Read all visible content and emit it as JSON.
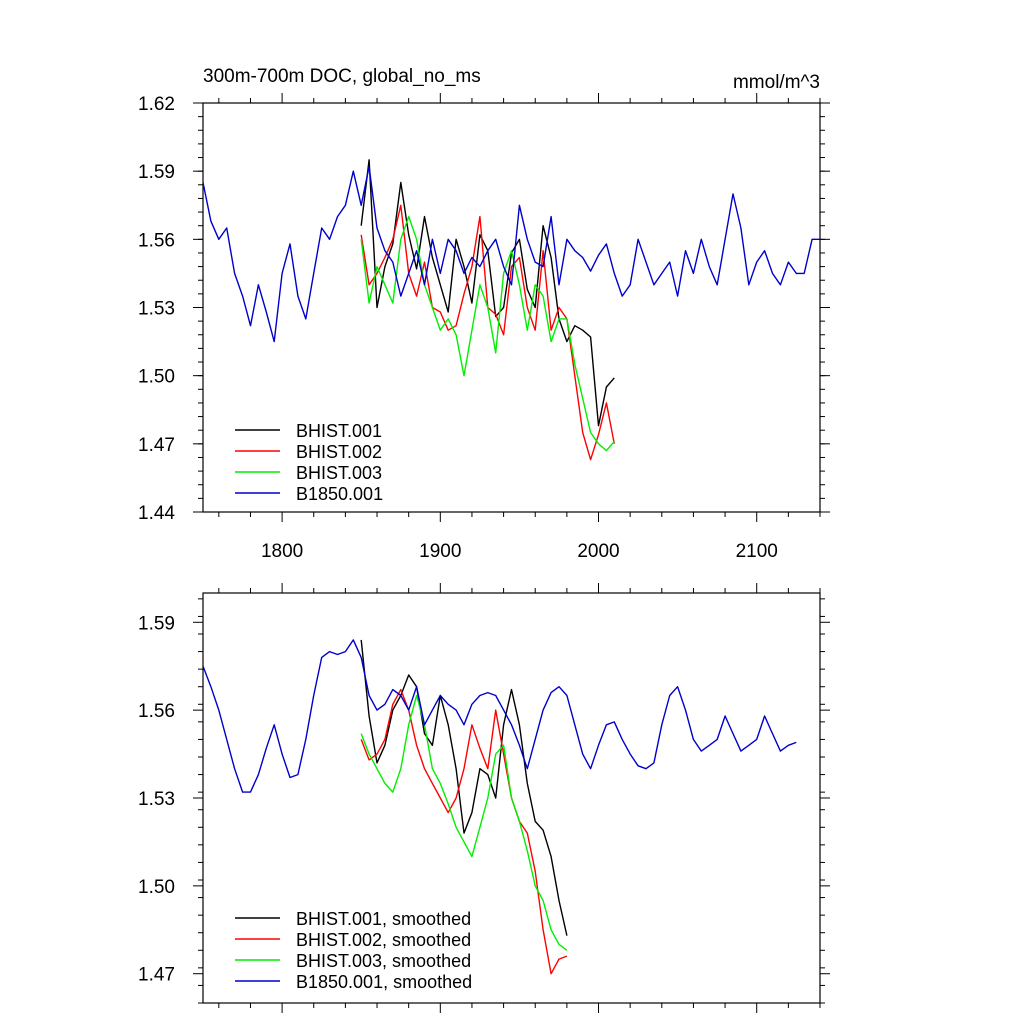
{
  "units": "mmol/m^3",
  "chart_data": [
    {
      "type": "line",
      "title": "300m-700m DOC, global_no_ms",
      "units": "mmol/m^3",
      "xlabel": "",
      "ylabel": "",
      "xlim": [
        1750,
        2140
      ],
      "ylim": [
        1.44,
        1.62
      ],
      "x_ticks": [
        1800,
        1900,
        2000,
        2100
      ],
      "x_tick_labels": [
        "1800",
        "1900",
        "2000",
        "2100"
      ],
      "y_ticks": [
        1.44,
        1.47,
        1.5,
        1.53,
        1.56,
        1.59,
        1.62
      ],
      "y_tick_labels": [
        "1.44",
        "1.47",
        "1.50",
        "1.53",
        "1.56",
        "1.59",
        "1.62"
      ],
      "legend_position": "bottom-left",
      "series": [
        {
          "name": "BHIST.001",
          "color": "#000000",
          "x_start": 1850,
          "x_step": 5,
          "values": [
            1.566,
            1.595,
            1.53,
            1.548,
            1.558,
            1.585,
            1.562,
            1.547,
            1.57,
            1.552,
            1.54,
            1.528,
            1.56,
            1.548,
            1.532,
            1.562,
            1.555,
            1.526,
            1.53,
            1.554,
            1.56,
            1.538,
            1.53,
            1.566,
            1.552,
            1.525,
            1.515,
            1.522,
            1.52,
            1.517,
            1.478,
            1.495,
            1.499
          ]
        },
        {
          "name": "BHIST.002",
          "color": "#ff0000",
          "x_start": 1850,
          "x_step": 5,
          "values": [
            1.562,
            1.54,
            1.545,
            1.552,
            1.56,
            1.575,
            1.545,
            1.535,
            1.55,
            1.53,
            1.528,
            1.52,
            1.522,
            1.536,
            1.548,
            1.57,
            1.53,
            1.527,
            1.518,
            1.548,
            1.552,
            1.53,
            1.52,
            1.555,
            1.52,
            1.53,
            1.525,
            1.5,
            1.475,
            1.463,
            1.474,
            1.488,
            1.47
          ]
        },
        {
          "name": "BHIST.003",
          "color": "#00ee00",
          "x_start": 1850,
          "x_step": 5,
          "values": [
            1.56,
            1.532,
            1.548,
            1.54,
            1.532,
            1.56,
            1.57,
            1.56,
            1.54,
            1.53,
            1.52,
            1.525,
            1.518,
            1.5,
            1.52,
            1.54,
            1.53,
            1.51,
            1.545,
            1.555,
            1.54,
            1.52,
            1.54,
            1.535,
            1.515,
            1.525,
            1.525,
            1.505,
            1.49,
            1.475,
            1.47,
            1.467,
            1.471
          ]
        },
        {
          "name": "B1850.001",
          "color": "#0000cc",
          "x_start": 1750,
          "x_step": 5,
          "values": [
            1.585,
            1.568,
            1.56,
            1.565,
            1.545,
            1.535,
            1.522,
            1.54,
            1.528,
            1.515,
            1.545,
            1.558,
            1.535,
            1.525,
            1.545,
            1.565,
            1.56,
            1.57,
            1.575,
            1.59,
            1.575,
            1.592,
            1.565,
            1.555,
            1.55,
            1.535,
            1.545,
            1.555,
            1.54,
            1.56,
            1.545,
            1.56,
            1.555,
            1.545,
            1.552,
            1.548,
            1.555,
            1.56,
            1.548,
            1.54,
            1.575,
            1.56,
            1.55,
            1.548,
            1.57,
            1.54,
            1.56,
            1.555,
            1.552,
            1.546,
            1.553,
            1.558,
            1.545,
            1.535,
            1.54,
            1.56,
            1.55,
            1.54,
            1.545,
            1.55,
            1.535,
            1.555,
            1.545,
            1.56,
            1.548,
            1.54,
            1.56,
            1.58,
            1.565,
            1.54,
            1.55,
            1.555,
            1.545,
            1.54,
            1.55,
            1.545,
            1.545,
            1.56,
            1.56
          ]
        }
      ]
    },
    {
      "type": "line",
      "title": "",
      "xlabel": "",
      "ylabel": "",
      "xlim": [
        1750,
        2140
      ],
      "ylim": [
        1.46,
        1.6
      ],
      "x_ticks": [
        1800,
        1900,
        2000,
        2100
      ],
      "y_ticks": [
        1.47,
        1.5,
        1.53,
        1.56,
        1.59
      ],
      "y_tick_labels": [
        "1.47",
        "1.50",
        "1.53",
        "1.56",
        "1.59"
      ],
      "legend_position": "bottom-left",
      "series": [
        {
          "name": "BHIST.001, smoothed",
          "color": "#000000",
          "x_start": 1850,
          "x_step": 5,
          "values": [
            1.584,
            1.558,
            1.542,
            1.548,
            1.56,
            1.565,
            1.572,
            1.568,
            1.552,
            1.548,
            1.565,
            1.555,
            1.54,
            1.518,
            1.525,
            1.54,
            1.538,
            1.53,
            1.555,
            1.567,
            1.555,
            1.535,
            1.522,
            1.519,
            1.51,
            1.495,
            1.483
          ]
        },
        {
          "name": "BHIST.002, smoothed",
          "color": "#ff0000",
          "x_start": 1850,
          "x_step": 5,
          "values": [
            1.55,
            1.543,
            1.545,
            1.55,
            1.562,
            1.567,
            1.56,
            1.548,
            1.54,
            1.535,
            1.53,
            1.525,
            1.53,
            1.54,
            1.555,
            1.547,
            1.54,
            1.56,
            1.545,
            1.53,
            1.522,
            1.518,
            1.505,
            1.485,
            1.47,
            1.475,
            1.476
          ]
        },
        {
          "name": "BHIST.003, smoothed",
          "color": "#00ee00",
          "x_start": 1850,
          "x_step": 5,
          "values": [
            1.552,
            1.545,
            1.54,
            1.535,
            1.532,
            1.54,
            1.555,
            1.565,
            1.555,
            1.54,
            1.535,
            1.528,
            1.52,
            1.515,
            1.51,
            1.52,
            1.53,
            1.545,
            1.548,
            1.53,
            1.522,
            1.512,
            1.5,
            1.495,
            1.485,
            1.48,
            1.478
          ]
        },
        {
          "name": "B1850.001, smoothed",
          "color": "#0000cc",
          "x_start": 1750,
          "x_step": 5,
          "values": [
            1.575,
            1.568,
            1.56,
            1.55,
            1.54,
            1.532,
            1.532,
            1.538,
            1.547,
            1.555,
            1.545,
            1.537,
            1.538,
            1.55,
            1.565,
            1.578,
            1.58,
            1.579,
            1.58,
            1.584,
            1.578,
            1.565,
            1.56,
            1.562,
            1.567,
            1.565,
            1.56,
            1.568,
            1.555,
            1.56,
            1.565,
            1.562,
            1.56,
            1.555,
            1.562,
            1.565,
            1.566,
            1.565,
            1.56,
            1.555,
            1.548,
            1.54,
            1.55,
            1.56,
            1.566,
            1.568,
            1.565,
            1.555,
            1.545,
            1.54,
            1.548,
            1.555,
            1.556,
            1.55,
            1.545,
            1.541,
            1.54,
            1.542,
            1.555,
            1.565,
            1.568,
            1.56,
            1.55,
            1.546,
            1.548,
            1.55,
            1.558,
            1.552,
            1.546,
            1.548,
            1.55,
            1.558,
            1.552,
            1.546,
            1.548,
            1.549
          ]
        }
      ]
    }
  ]
}
